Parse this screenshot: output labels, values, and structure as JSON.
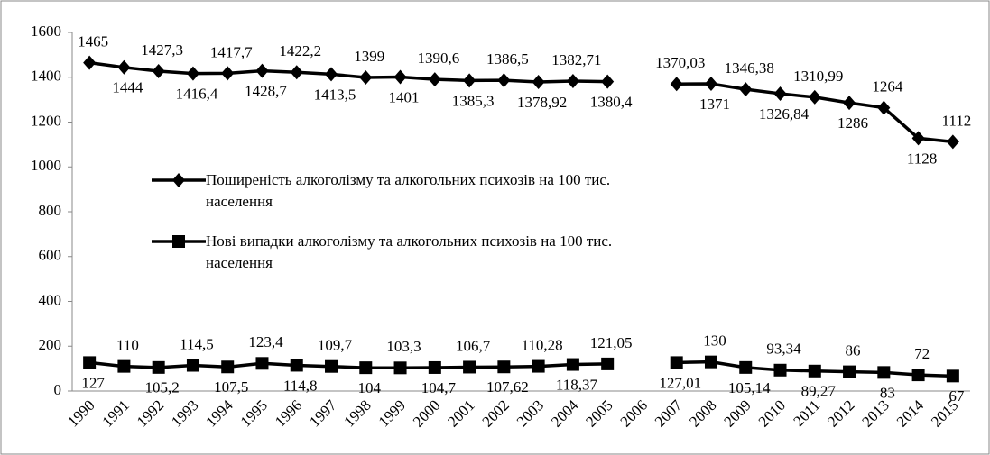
{
  "chart_data": {
    "type": "line",
    "categories": [
      "1990",
      "1991",
      "1992",
      "1993",
      "1994",
      "1995",
      "1996",
      "1997",
      "1998",
      "1999",
      "2000",
      "2001",
      "2002",
      "2003",
      "2004",
      "2005",
      "2006",
      "2007",
      "2008",
      "2009",
      "2010",
      "2011",
      "2012",
      "2013",
      "2014",
      "2015"
    ],
    "series": [
      {
        "name": "Поширеність алкоголізму та алкогольних психозів на 100 тис. населення",
        "color": "#000000",
        "marker": "diamond",
        "values": [
          1465,
          1444,
          1427.3,
          1416.4,
          1417.7,
          1428.7,
          1422.2,
          1413.5,
          1399,
          1401,
          1390.6,
          1385.3,
          1386.5,
          1378.92,
          1382.71,
          1380.4,
          null,
          1370.03,
          1371,
          1346.38,
          1326.84,
          1310.99,
          1286,
          1264,
          1128,
          1112
        ],
        "value_labels": [
          "1465",
          "1444",
          "1427,3",
          "1416,4",
          "1417,7",
          "1428,7",
          "1422,2",
          "1413,5",
          "1399",
          "1401",
          "1390,6",
          "1385,3",
          "1386,5",
          "1378,92",
          "1382,71",
          "1380,4",
          null,
          "1370,03",
          "1371",
          "1346,38",
          "1326,84",
          "1310,99",
          "1286",
          "1264",
          "1128",
          "1112"
        ]
      },
      {
        "name": "Нові випадки алкоголізму та алкогольних психозів на 100 тис. населення",
        "color": "#000000",
        "marker": "square",
        "values": [
          127,
          110,
          105.2,
          114.5,
          107.5,
          123.4,
          114.8,
          109.7,
          104,
          103.3,
          104.7,
          106.7,
          107.62,
          110.28,
          118.37,
          121.05,
          null,
          127.01,
          130,
          105.14,
          93.34,
          89.27,
          86,
          83,
          72,
          67
        ],
        "value_labels": [
          "127",
          "110",
          "105,2",
          "114,5",
          "107,5",
          "123,4",
          "114,8",
          "109,7",
          "104",
          "103,3",
          "104,7",
          "106,7",
          "107,62",
          "110,28",
          "118,37",
          "121,05",
          null,
          "127,01",
          "130",
          "105,14",
          "93,34",
          "89,27",
          "86",
          "83",
          "72",
          "67"
        ]
      }
    ],
    "ylim": [
      0,
      1600
    ],
    "yticks": [
      0,
      200,
      400,
      600,
      800,
      1000,
      1200,
      1400,
      1600
    ],
    "grid": false
  }
}
